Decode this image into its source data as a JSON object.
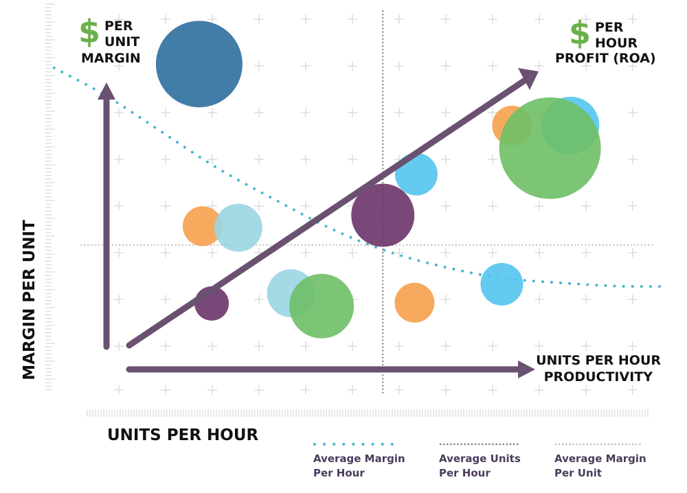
{
  "chart_data": {
    "type": "scatter",
    "title": "",
    "xlabel": "UNITS PER HOUR",
    "ylabel": "MARGIN PER UNIT",
    "corner_labels": {
      "top_left": {
        "symbol": "$",
        "line1": "PER",
        "line2": "UNIT",
        "line3": "MARGIN"
      },
      "top_right": {
        "symbol": "$",
        "line1": "PER",
        "line2": "HOUR",
        "line3": "PROFIT (ROA)"
      }
    },
    "arrow_labels": {
      "x_arrow": [
        "UNITS PER HOUR",
        "PRODUCTIVITY"
      ]
    },
    "legend": [
      {
        "id": "avg-margin-per-hour",
        "line1": "Average Margin",
        "line2": "Per Hour",
        "style": "dotted",
        "color": "#49b6cf"
      },
      {
        "id": "avg-units-per-hour",
        "line1": "Average Units",
        "line2": "Per Hour",
        "style": "dotted",
        "color": "#777777"
      },
      {
        "id": "avg-margin-per-unit",
        "line1": "Average Margin",
        "line2": "Per Unit",
        "style": "dotted",
        "color": "#bbbbbb"
      }
    ],
    "legend_placement": "bottom-right",
    "grid": true,
    "xlim": [
      0,
      100
    ],
    "ylim": [
      0,
      100
    ],
    "reference_lines": {
      "avg_units_per_hour_x": 49,
      "avg_margin_per_unit_y": 35,
      "avg_margin_per_hour_curve": [
        [
          -9,
          82
        ],
        [
          0,
          75
        ],
        [
          10,
          65
        ],
        [
          20,
          55
        ],
        [
          30,
          47
        ],
        [
          40,
          39
        ],
        [
          50,
          33
        ],
        [
          60,
          29
        ],
        [
          70,
          26
        ],
        [
          80,
          25
        ],
        [
          90,
          24
        ],
        [
          99,
          24
        ]
      ]
    },
    "bubbles": [
      {
        "x": 16.6,
        "y": 83,
        "size": 63,
        "color": "#2e6f9e"
      },
      {
        "x": 17.2,
        "y": 40,
        "size": 29,
        "color": "#f6a04d"
      },
      {
        "x": 23.5,
        "y": 39.6,
        "size": 35,
        "color": "#9ad6e3"
      },
      {
        "x": 18.8,
        "y": 19.5,
        "size": 25,
        "color": "#6c3469"
      },
      {
        "x": 32.8,
        "y": 22.2,
        "size": 35,
        "color": "#9ad6e3"
      },
      {
        "x": 38.2,
        "y": 18.8,
        "size": 47,
        "color": "#6ebf66"
      },
      {
        "x": 49,
        "y": 42.9,
        "size": 46,
        "color": "#6c3469"
      },
      {
        "x": 54.9,
        "y": 53.8,
        "size": 31,
        "color": "#54c4ee"
      },
      {
        "x": 54.6,
        "y": 19.7,
        "size": 29,
        "color": "#f6a04d"
      },
      {
        "x": 71.8,
        "y": 66.7,
        "size": 29,
        "color": "#f6a04d"
      },
      {
        "x": 82.1,
        "y": 66.7,
        "size": 42,
        "color": "#54c4ee"
      },
      {
        "x": 70,
        "y": 24.6,
        "size": 31,
        "color": "#54c4ee"
      },
      {
        "x": 78.5,
        "y": 60.7,
        "size": 74,
        "color": "#6ebf66"
      }
    ],
    "colors": {
      "arrows": "#6a5170",
      "dollar": "#6ab04c",
      "grid_cross": "#d7d7d7",
      "ticks": "#cfcfcf"
    }
  }
}
